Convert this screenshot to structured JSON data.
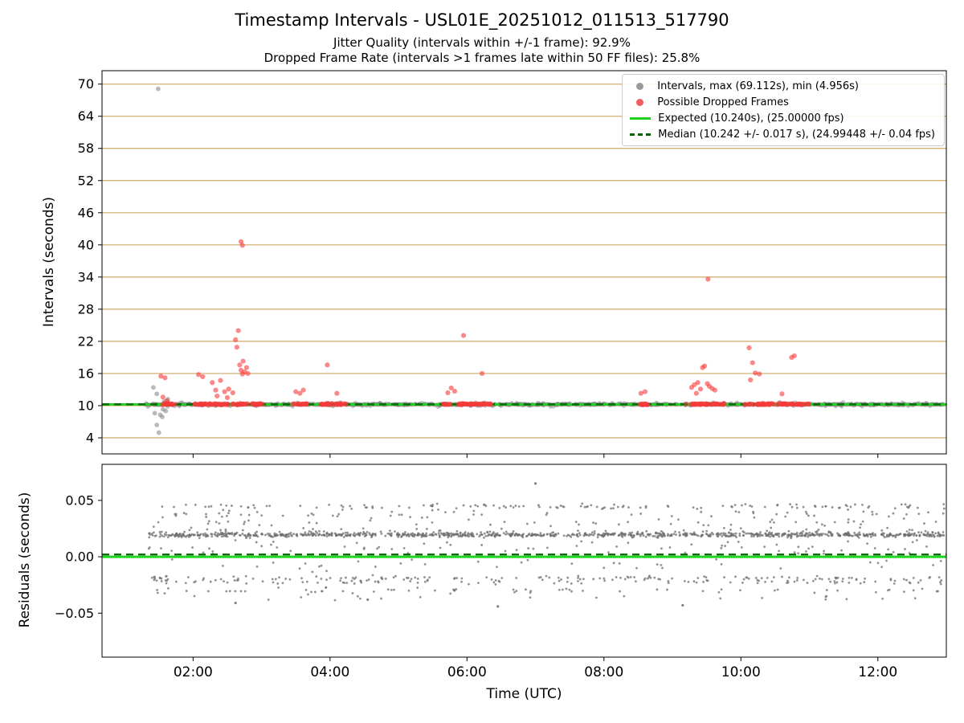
{
  "title": "Timestamp Intervals - USL01E_20251012_011513_517790",
  "subtitle1": "Jitter Quality (intervals within +/-1 frame): 92.9%",
  "subtitle2": "Dropped Frame Rate (intervals >1 frames late within 50 FF files): 25.8%",
  "jitter_quality_pct": 92.9,
  "dropped_frame_rate_pct": 25.8,
  "colors": {
    "grid": "#ccaa66",
    "gray_point": "#7f7f7f",
    "red_point": "#f63b3b",
    "expected": "#1fd31f",
    "median": "#006400",
    "spine": "#000000",
    "tick_text": "#000000"
  },
  "chart_data": [
    {
      "type": "scatter",
      "title": "Timestamp Intervals - USL01E_20251012_011513_517790",
      "xlabel": "Time (UTC)",
      "ylabel": "Intervals (seconds)",
      "xlim": [
        0.67,
        13.0
      ],
      "ylim": [
        1.0,
        72.5
      ],
      "yticks": [
        4,
        10,
        16,
        22,
        28,
        34,
        40,
        46,
        52,
        58,
        64,
        70
      ],
      "xticks": [
        {
          "v": 2,
          "label": "02:00"
        },
        {
          "v": 4,
          "label": "04:00"
        },
        {
          "v": 6,
          "label": "06:00"
        },
        {
          "v": 8,
          "label": "08:00"
        },
        {
          "v": 10,
          "label": "10:00"
        },
        {
          "v": 12,
          "label": "12:00"
        }
      ],
      "expected_s": 10.24,
      "expected_fps": "25.00000",
      "median_s": 10.242,
      "median_tol_s": 0.017,
      "median_fps": "24.99448",
      "median_fps_tol": 0.04,
      "max_s": 69.112,
      "min_s": 4.956,
      "legend": [
        {
          "marker": "dot",
          "color": "#9a9a9a",
          "label": "Intervals, max (69.112s), min (4.956s)"
        },
        {
          "marker": "dot",
          "color": "#f25c5c",
          "label": "Possible Dropped Frames"
        },
        {
          "marker": "line",
          "color": "#1fd31f",
          "label": "Expected (10.240s), (25.00000 fps)"
        },
        {
          "marker": "dashed",
          "color": "#006400",
          "label": "Median (10.242 +/- 0.017 s), (24.99448 +/- 0.04 fps)"
        }
      ],
      "gray_bands": [
        {
          "x0": 1.3,
          "x1": 12.97,
          "y": 10.24,
          "jit": 0.12,
          "count": 900,
          "seed": 11
        },
        {
          "x0": 1.3,
          "x1": 12.97,
          "y": 10.24,
          "jit": 0.4,
          "count": 260,
          "seed": 12
        }
      ],
      "red_bands": [
        {
          "x0": 1.55,
          "x1": 1.78,
          "y": 10.28,
          "jit": 0.12,
          "count": 20,
          "seed": 21
        },
        {
          "x0": 2.03,
          "x1": 2.65,
          "y": 10.28,
          "jit": 0.12,
          "count": 50,
          "seed": 22
        },
        {
          "x0": 2.66,
          "x1": 3.02,
          "y": 10.28,
          "jit": 0.12,
          "count": 30,
          "seed": 23
        },
        {
          "x0": 3.45,
          "x1": 3.66,
          "y": 10.28,
          "jit": 0.12,
          "count": 18,
          "seed": 24
        },
        {
          "x0": 3.85,
          "x1": 4.25,
          "y": 10.28,
          "jit": 0.12,
          "count": 34,
          "seed": 25
        },
        {
          "x0": 5.64,
          "x1": 6.35,
          "y": 10.28,
          "jit": 0.12,
          "count": 56,
          "seed": 26
        },
        {
          "x0": 8.5,
          "x1": 8.66,
          "y": 10.28,
          "jit": 0.12,
          "count": 14,
          "seed": 27
        },
        {
          "x0": 9.2,
          "x1": 9.76,
          "y": 10.28,
          "jit": 0.12,
          "count": 46,
          "seed": 28
        },
        {
          "x0": 10.05,
          "x1": 11.0,
          "y": 10.28,
          "jit": 0.12,
          "count": 78,
          "seed": 29
        }
      ],
      "gray_points": [
        [
          1.49,
          69.11
        ],
        [
          1.5,
          4.96
        ],
        [
          1.47,
          6.4
        ],
        [
          1.44,
          8.6
        ],
        [
          1.52,
          8.3
        ],
        [
          1.55,
          7.9
        ],
        [
          1.42,
          13.4
        ],
        [
          1.47,
          12.2
        ],
        [
          1.63,
          11.2
        ],
        [
          1.56,
          9.3
        ],
        [
          1.6,
          9.0
        ],
        [
          1.58,
          10.8
        ]
      ],
      "red_points": [
        [
          1.53,
          15.5
        ],
        [
          1.59,
          15.2
        ],
        [
          1.56,
          11.6
        ],
        [
          1.62,
          10.9
        ],
        [
          2.08,
          15.8
        ],
        [
          2.14,
          15.4
        ],
        [
          2.28,
          14.3
        ],
        [
          2.33,
          12.9
        ],
        [
          2.4,
          14.7
        ],
        [
          2.46,
          12.6
        ],
        [
          2.52,
          13.1
        ],
        [
          2.58,
          12.4
        ],
        [
          2.35,
          11.8
        ],
        [
          2.5,
          11.5
        ],
        [
          2.62,
          22.3
        ],
        [
          2.64,
          20.9
        ],
        [
          2.66,
          24.0
        ],
        [
          2.7,
          40.6
        ],
        [
          2.72,
          39.9
        ],
        [
          2.68,
          17.6
        ],
        [
          2.7,
          16.6
        ],
        [
          2.72,
          15.9
        ],
        [
          2.73,
          18.3
        ],
        [
          2.75,
          16.3
        ],
        [
          2.78,
          17.1
        ],
        [
          2.8,
          16.0
        ],
        [
          3.5,
          12.6
        ],
        [
          3.56,
          12.3
        ],
        [
          3.61,
          12.9
        ],
        [
          3.96,
          17.6
        ],
        [
          4.1,
          12.3
        ],
        [
          5.72,
          12.4
        ],
        [
          5.77,
          13.3
        ],
        [
          5.82,
          12.7
        ],
        [
          5.95,
          23.1
        ],
        [
          6.22,
          16.0
        ],
        [
          8.54,
          12.3
        ],
        [
          8.6,
          12.6
        ],
        [
          9.28,
          13.4
        ],
        [
          9.32,
          13.9
        ],
        [
          9.37,
          14.3
        ],
        [
          9.41,
          13.1
        ],
        [
          9.44,
          17.1
        ],
        [
          9.47,
          17.4
        ],
        [
          9.51,
          14.1
        ],
        [
          9.54,
          13.6
        ],
        [
          9.58,
          13.2
        ],
        [
          9.62,
          12.9
        ],
        [
          9.35,
          12.3
        ],
        [
          9.52,
          33.6
        ],
        [
          10.12,
          20.8
        ],
        [
          10.17,
          18.0
        ],
        [
          10.21,
          16.1
        ],
        [
          10.27,
          15.9
        ],
        [
          10.14,
          14.8
        ],
        [
          10.6,
          12.2
        ],
        [
          10.74,
          19.0
        ],
        [
          10.78,
          19.3
        ]
      ]
    },
    {
      "type": "scatter",
      "ylabel": "Residuals (seconds)",
      "xlim": [
        0.67,
        13.0
      ],
      "ylim": [
        -0.089,
        0.082
      ],
      "yticks": [
        {
          "v": -0.05,
          "label": "−0.05"
        },
        {
          "v": 0.0,
          "label": "0.00"
        },
        {
          "v": 0.05,
          "label": "0.05"
        }
      ],
      "expected": 0.0,
      "median": 0.002,
      "bands": [
        {
          "x0": 1.35,
          "x1": 12.97,
          "y": 0.0195,
          "jit": 0.0018,
          "count": 800,
          "seed": 31
        },
        {
          "x0": 1.35,
          "x1": 12.97,
          "y": 0.021,
          "jit": 0.004,
          "count": 220,
          "seed": 32
        },
        {
          "x0": 1.35,
          "x1": 12.97,
          "y": 0.0445,
          "jit": 0.002,
          "count": 130,
          "seed": 33
        },
        {
          "x0": 1.35,
          "x1": 12.97,
          "y": 0.038,
          "jit": 0.0035,
          "count": 70,
          "seed": 34
        },
        {
          "x0": 1.35,
          "x1": 12.97,
          "y": -0.019,
          "jit": 0.002,
          "count": 140,
          "seed": 35
        },
        {
          "x0": 1.35,
          "x1": 12.97,
          "y": -0.0225,
          "jit": 0.0018,
          "count": 90,
          "seed": 36
        },
        {
          "x0": 1.35,
          "x1": 12.97,
          "y": -0.03,
          "jit": 0.0025,
          "count": 65,
          "seed": 37
        },
        {
          "x0": 1.35,
          "x1": 12.97,
          "y": 0.008,
          "jit": 0.009,
          "count": 80,
          "seed": 38
        },
        {
          "x0": 1.35,
          "x1": 12.97,
          "y": 0.03,
          "jit": 0.004,
          "count": 55,
          "seed": 39
        },
        {
          "x0": 1.35,
          "x1": 12.97,
          "y": -0.007,
          "jit": 0.005,
          "count": 35,
          "seed": 40
        },
        {
          "x0": 1.35,
          "x1": 12.97,
          "y": -0.036,
          "jit": 0.003,
          "count": 20,
          "seed": 41
        }
      ],
      "outliers": [
        [
          7.0,
          0.065
        ],
        [
          6.45,
          -0.044
        ],
        [
          9.15,
          -0.043
        ],
        [
          4.55,
          -0.038
        ],
        [
          2.62,
          -0.041
        ]
      ]
    }
  ]
}
